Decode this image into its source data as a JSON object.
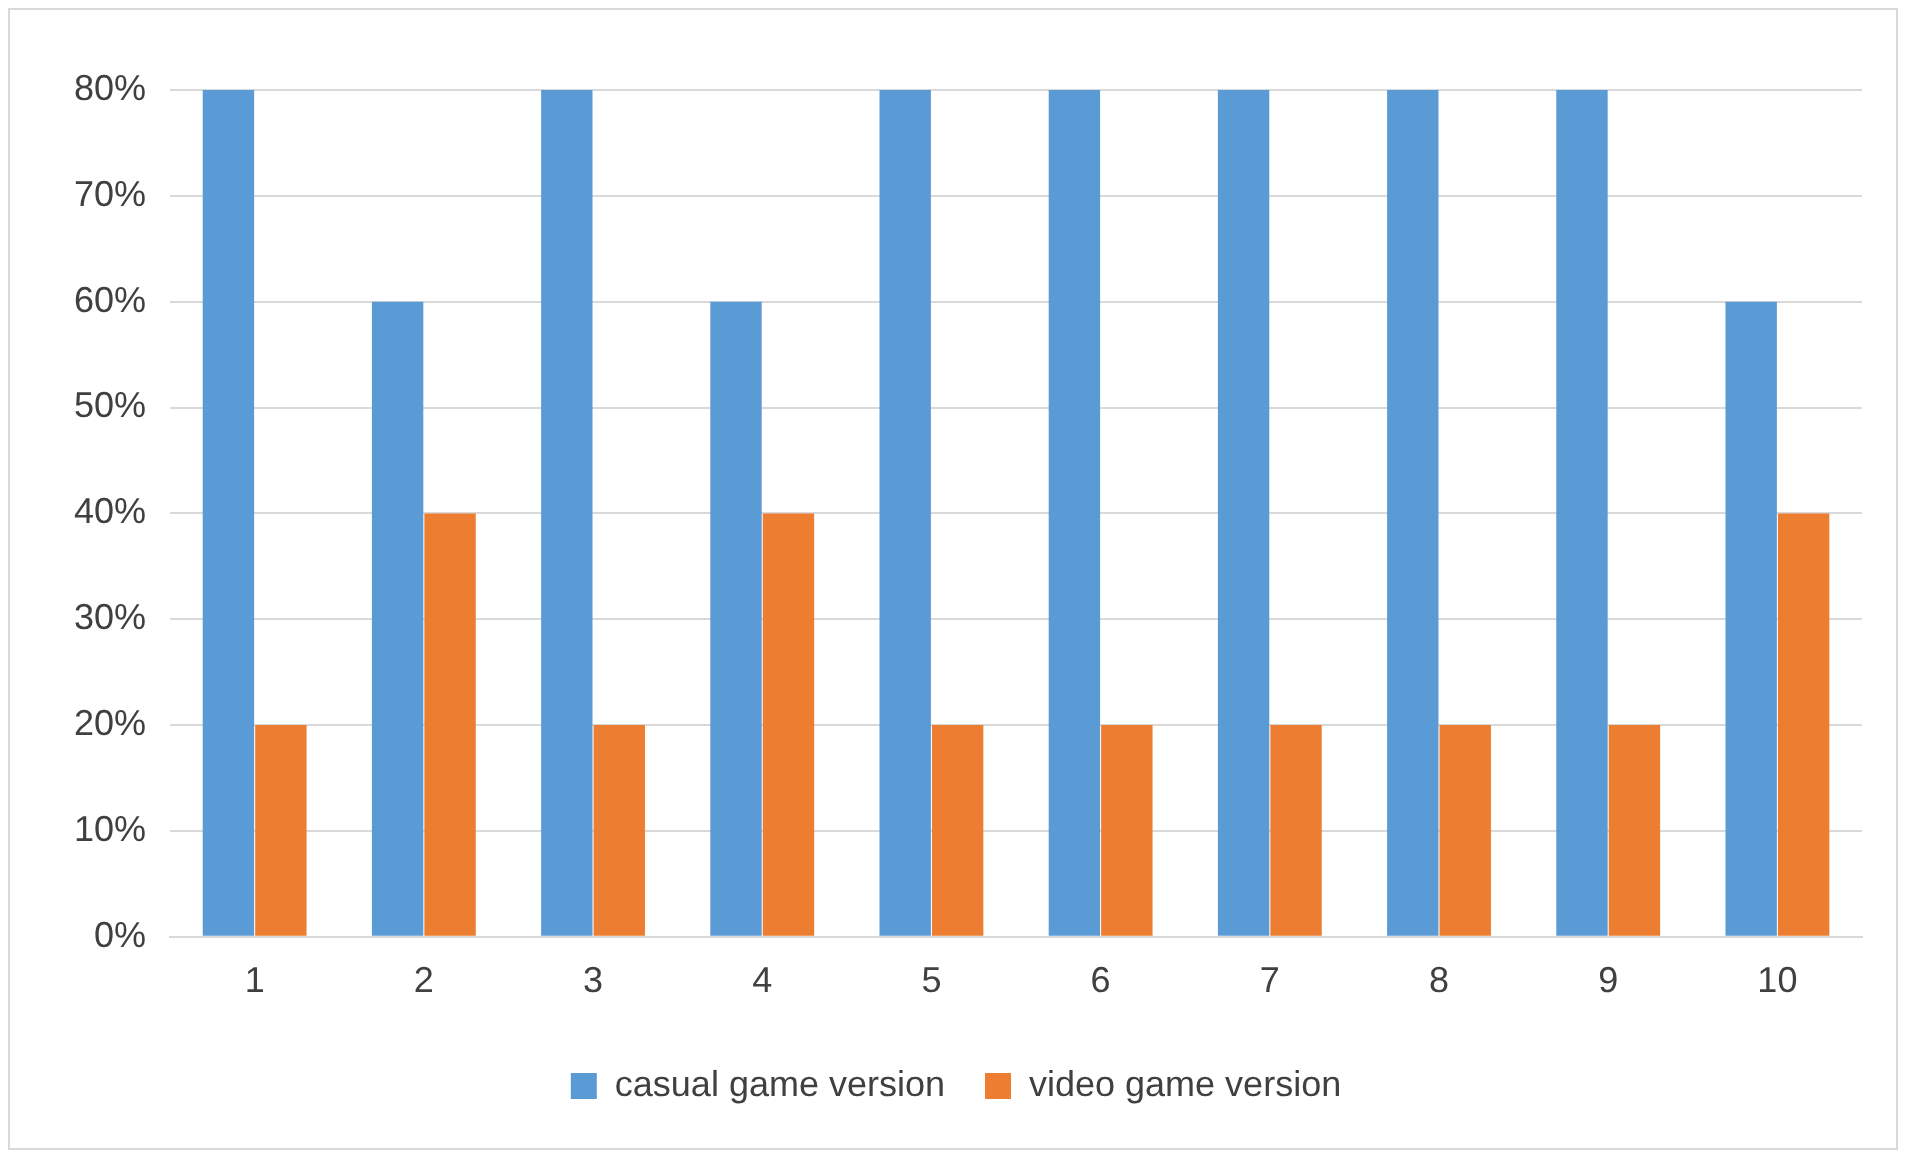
{
  "chart_data": {
    "type": "bar",
    "categories": [
      "1",
      "2",
      "3",
      "4",
      "5",
      "6",
      "7",
      "8",
      "9",
      "10"
    ],
    "series": [
      {
        "name": "casual game version",
        "color": "#5b9bd5",
        "values": [
          80,
          60,
          80,
          60,
          80,
          80,
          80,
          80,
          80,
          60
        ]
      },
      {
        "name": "video game version",
        "color": "#ed7d31",
        "values": [
          20,
          40,
          20,
          40,
          20,
          20,
          20,
          20,
          20,
          40
        ]
      }
    ],
    "ylim": [
      0,
      80
    ],
    "yticks": [
      {
        "value": 0,
        "label": "0%"
      },
      {
        "value": 10,
        "label": "10%"
      },
      {
        "value": 20,
        "label": "20%"
      },
      {
        "value": 30,
        "label": "30%"
      },
      {
        "value": 40,
        "label": "40%"
      },
      {
        "value": 50,
        "label": "50%"
      },
      {
        "value": 60,
        "label": "60%"
      },
      {
        "value": 70,
        "label": "70%"
      },
      {
        "value": 80,
        "label": "80%"
      }
    ],
    "grid": "y",
    "legend": "bottom"
  }
}
